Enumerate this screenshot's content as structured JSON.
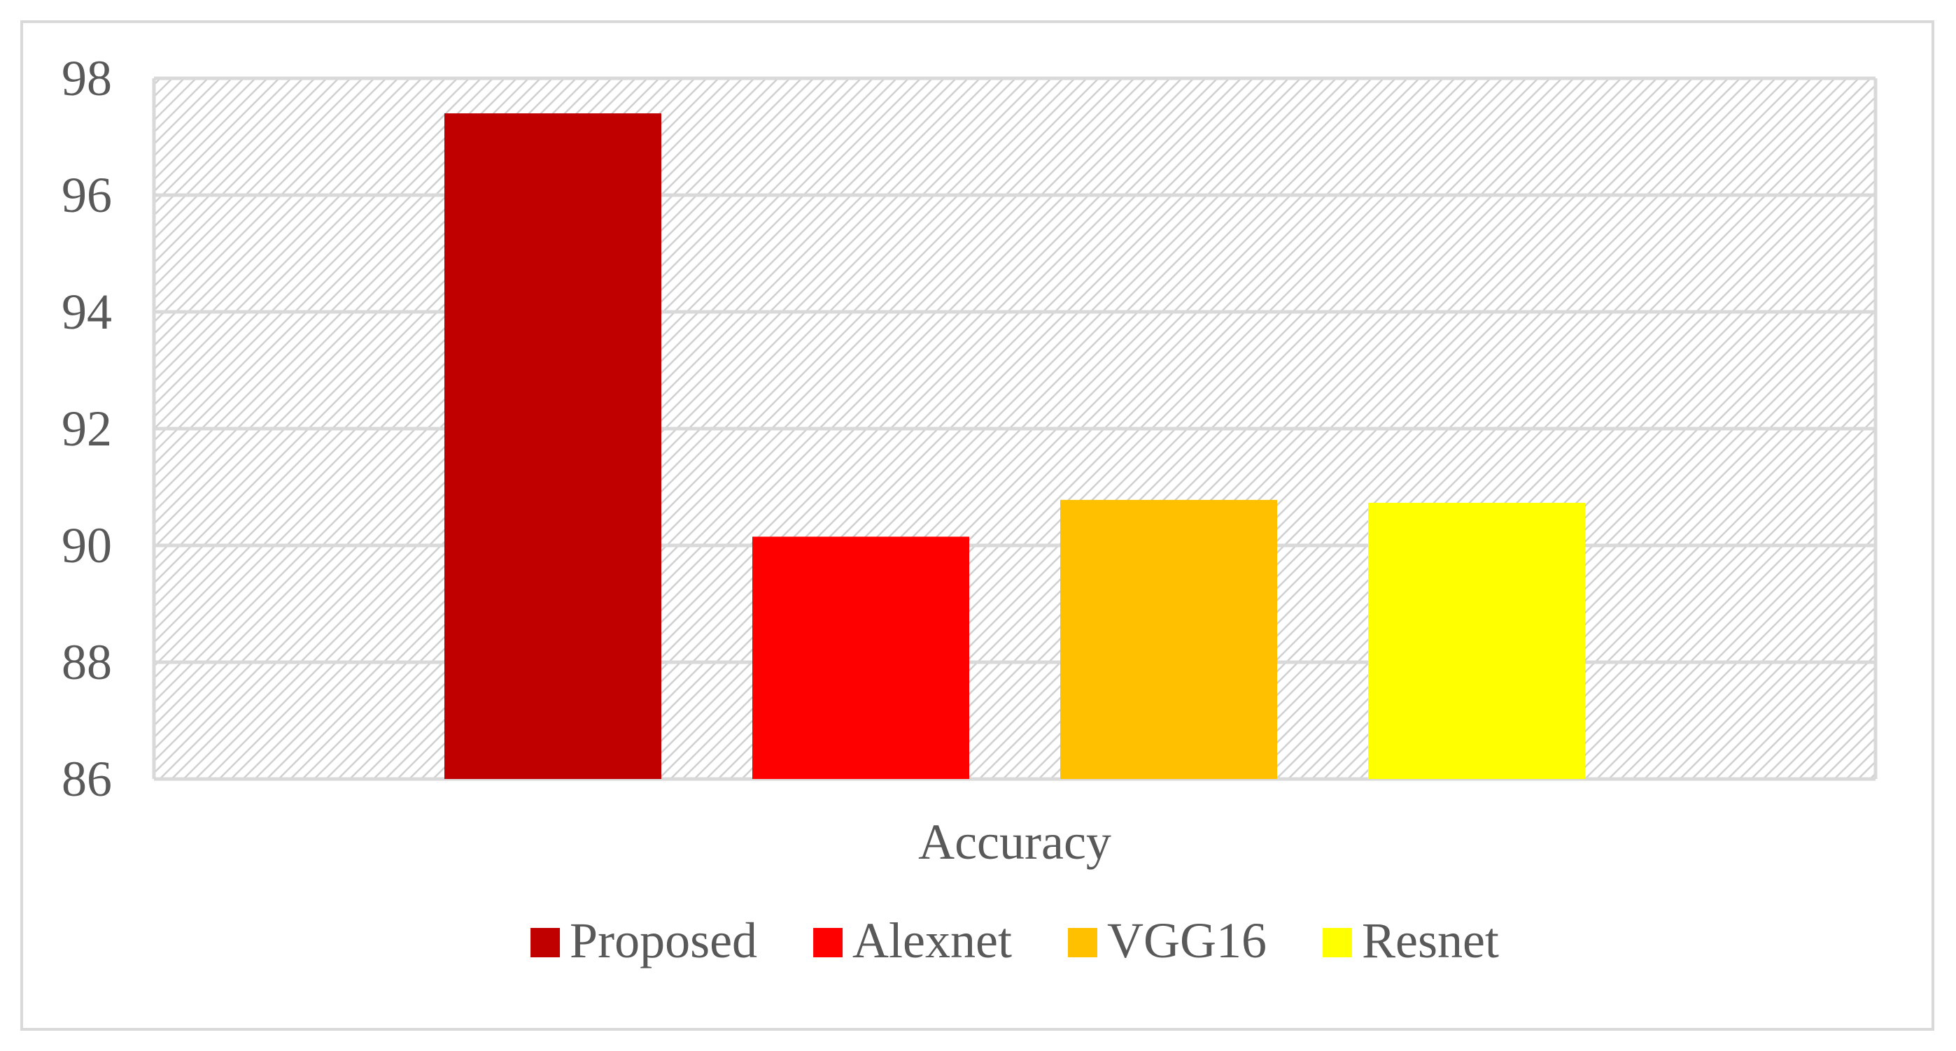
{
  "chart_data": {
    "type": "bar",
    "categories": [
      "Accuracy"
    ],
    "series": [
      {
        "name": "Proposed",
        "values": [
          97.4
        ],
        "color": "#c00000"
      },
      {
        "name": "Alexnet",
        "values": [
          90.15
        ],
        "color": "#ff0000"
      },
      {
        "name": "VGG16",
        "values": [
          90.78
        ],
        "color": "#ffc000"
      },
      {
        "name": "Resnet",
        "values": [
          90.73
        ],
        "color": "#ffff00"
      }
    ],
    "ylim": [
      86,
      98
    ],
    "yticks": [
      "86",
      "88",
      "90",
      "92",
      "94",
      "96",
      "98"
    ],
    "grid": true,
    "legend_position": "bottom",
    "plot_background": "hatched-light-gray"
  }
}
